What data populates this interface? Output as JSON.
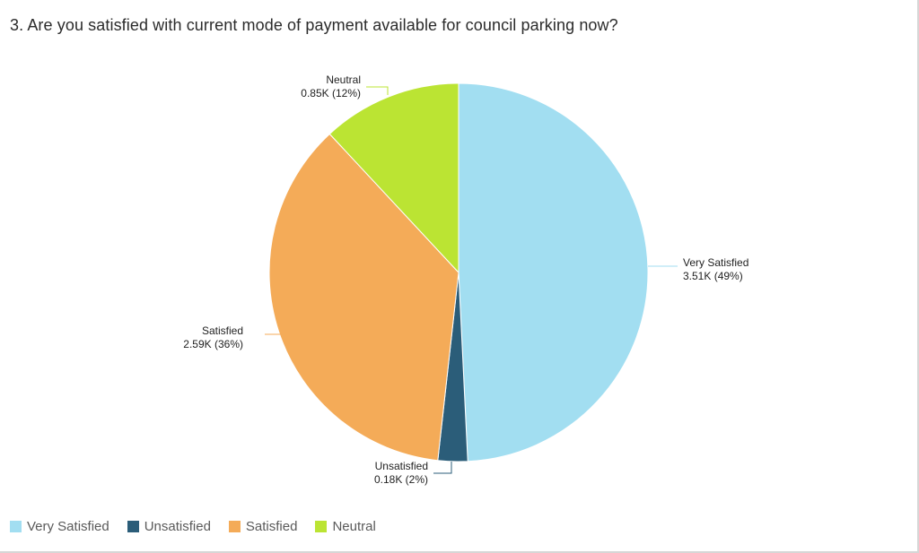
{
  "chart_data": {
    "type": "pie",
    "title": "3. Are you satisfied with current mode of payment available for council parking now?",
    "categories": [
      "Very Satisfied",
      "Unsatisfied",
      "Satisfied",
      "Neutral"
    ],
    "values": [
      3.51,
      0.18,
      2.59,
      0.85
    ],
    "value_labels": [
      "3.51K",
      "0.18K",
      "2.59K",
      "0.85K"
    ],
    "percent_labels": [
      "(49%)",
      "(2%)",
      "(36%)",
      "(12%)"
    ],
    "colors": [
      "#a2def1",
      "#2b5d79",
      "#f4ab58",
      "#bbe433"
    ],
    "legend_position": "bottom-left",
    "legend": [
      {
        "label": "Very Satisfied",
        "color": "#a2def1"
      },
      {
        "label": "Unsatisfied",
        "color": "#2b5d79"
      },
      {
        "label": "Satisfied",
        "color": "#f4ab58"
      },
      {
        "label": "Neutral",
        "color": "#bbe433"
      }
    ]
  }
}
